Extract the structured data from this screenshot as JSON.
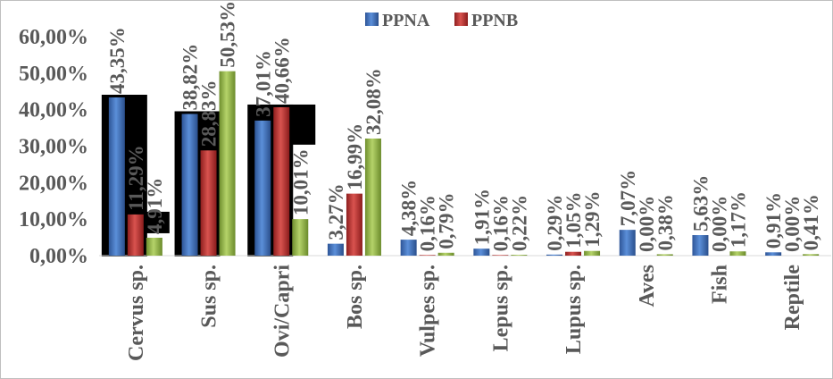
{
  "chart_data": {
    "type": "bar",
    "categories": [
      "Cervus sp.",
      "Sus sp.",
      "Ovi/Capri",
      "Bos sp.",
      "Vulpes sp.",
      "Lepus sp.",
      "Lupus sp.",
      "Aves",
      "Fish",
      "Reptile"
    ],
    "series": [
      {
        "name": "PPNA",
        "color": "#4472c4",
        "values": [
          43.35,
          38.82,
          37.01,
          3.27,
          4.38,
          1.91,
          0.29,
          7.07,
          5.63,
          0.91
        ],
        "labels": [
          "43,35%",
          "38,82%",
          "37,01%",
          "3,27%",
          "4,38%",
          "1,91%",
          "0,29%",
          "7,07%",
          "5,63%",
          "0,91%"
        ]
      },
      {
        "name": "PPNB",
        "color": "#c0392b",
        "values": [
          11.29,
          28.83,
          40.66,
          16.99,
          0.16,
          0.16,
          1.05,
          0.0,
          0.0,
          0.0
        ],
        "labels": [
          "11,29%",
          "28,83%",
          "40,66%",
          "16,99%",
          "0,16%",
          "0,16%",
          "1,05%",
          "0,00%",
          "0,00%",
          "0,00%"
        ]
      },
      {
        "name": "",
        "color": "#9bbb59",
        "values": [
          4.91,
          50.53,
          10.01,
          32.08,
          0.79,
          0.22,
          1.29,
          0.38,
          1.17,
          0.41
        ],
        "labels": [
          "4,91%",
          "50,53%",
          "10,01%",
          "32,08%",
          "0,79%",
          "0,22%",
          "1,29%",
          "0,38%",
          "1,17%",
          "0,41%"
        ]
      }
    ],
    "highlighted_categories": [
      "Cervus sp.",
      "Sus sp.",
      "Ovi/Capri"
    ],
    "yticks": [
      "0,00%",
      "10,00%",
      "20,00%",
      "30,00%",
      "40,00%",
      "50,00%",
      "60,00%"
    ],
    "ylim": [
      0,
      60
    ],
    "title": "",
    "xlabel": "",
    "ylabel": "",
    "grid": false,
    "legend_position": "top-center"
  }
}
